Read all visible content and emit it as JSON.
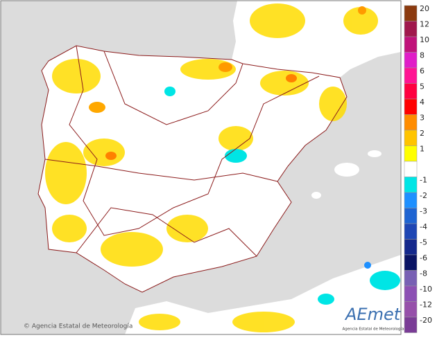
{
  "legend": {
    "items": [
      {
        "label": "20",
        "color": "#8b3a0f"
      },
      {
        "label": "12",
        "color": "#a0184c"
      },
      {
        "label": "10",
        "color": "#c0127a"
      },
      {
        "label": "8",
        "color": "#e01ec8"
      },
      {
        "label": "6",
        "color": "#ff1493"
      },
      {
        "label": "5",
        "color": "#ff0040"
      },
      {
        "label": "4",
        "color": "#ff0000"
      },
      {
        "label": "3",
        "color": "#ff8c00"
      },
      {
        "label": "2",
        "color": "#ffc400"
      },
      {
        "label": "1",
        "color": "#ffff00"
      },
      {
        "label": "-1",
        "color": "#00e5e5"
      },
      {
        "label": "-2",
        "color": "#1e90ff"
      },
      {
        "label": "-3",
        "color": "#1e64d2"
      },
      {
        "label": "-4",
        "color": "#1e46b4"
      },
      {
        "label": "-5",
        "color": "#14288c"
      },
      {
        "label": "-6",
        "color": "#0a1464"
      },
      {
        "label": "-8",
        "color": "#7860b4"
      },
      {
        "label": "-10",
        "color": "#8c50b4"
      },
      {
        "label": "-12",
        "color": "#9650aa"
      },
      {
        "label": "-20",
        "color": "#7a3c96"
      }
    ]
  },
  "copyright": "© Agencia Estatal de Meteorología",
  "logo": {
    "name": "AEmet",
    "subtitle": "Agencia Estatal de Meteorología"
  }
}
